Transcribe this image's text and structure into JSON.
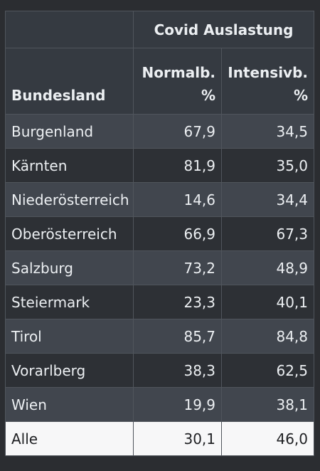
{
  "table": {
    "group_header": "Covid Auslastung",
    "columns": {
      "state": "Bundesland",
      "normal": [
        "Normalb.",
        "%"
      ],
      "icu": [
        "Intensivb.",
        "%"
      ]
    },
    "rows": [
      {
        "state": "Burgenland",
        "normal": "67,9",
        "icu": "34,5"
      },
      {
        "state": "Kärnten",
        "normal": "81,9",
        "icu": "35,0"
      },
      {
        "state": "Niederösterreich",
        "normal": "14,6",
        "icu": "34,4"
      },
      {
        "state": "Oberösterreich",
        "normal": "66,9",
        "icu": "67,3"
      },
      {
        "state": "Salzburg",
        "normal": "73,2",
        "icu": "48,9"
      },
      {
        "state": "Steiermark",
        "normal": "23,3",
        "icu": "40,1"
      },
      {
        "state": "Tirol",
        "normal": "85,7",
        "icu": "84,8"
      },
      {
        "state": "Vorarlberg",
        "normal": "38,3",
        "icu": "62,5"
      },
      {
        "state": "Wien",
        "normal": "19,9",
        "icu": "38,1"
      }
    ],
    "total": {
      "state": "Alle",
      "normal": "30,1",
      "icu": "46,0"
    }
  },
  "colors": {
    "background": "#2b2d31",
    "header_bg": "#353a41",
    "row_odd": "#41464e",
    "row_even": "#2d3035",
    "total_bg": "#f7f7f8"
  }
}
